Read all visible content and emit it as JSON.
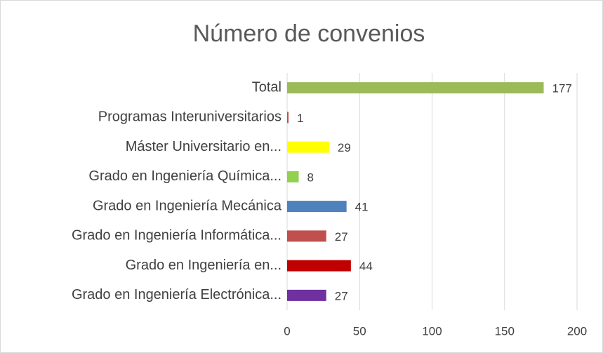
{
  "chart_data": {
    "type": "barh",
    "title": "Número de convenios",
    "categories": [
      "Total",
      "Programas Interuniversitarios",
      "Máster Universitario en...",
      "Grado en Ingeniería Química...",
      "Grado en Ingeniería Mecánica",
      "Grado en Ingeniería Informática...",
      "Grado en Ingeniería en...",
      "Grado en Ingeniería Electrónica..."
    ],
    "values": [
      177,
      1,
      29,
      8,
      41,
      27,
      44,
      27
    ],
    "colors": [
      "#9bbb59",
      "#c0504d",
      "#ffff00",
      "#92d050",
      "#4f81bd",
      "#c0504d",
      "#c00000",
      "#7030a0"
    ],
    "xlim": [
      0,
      200
    ],
    "xticks": [
      0,
      50,
      100,
      150,
      200
    ],
    "grid": true
  }
}
